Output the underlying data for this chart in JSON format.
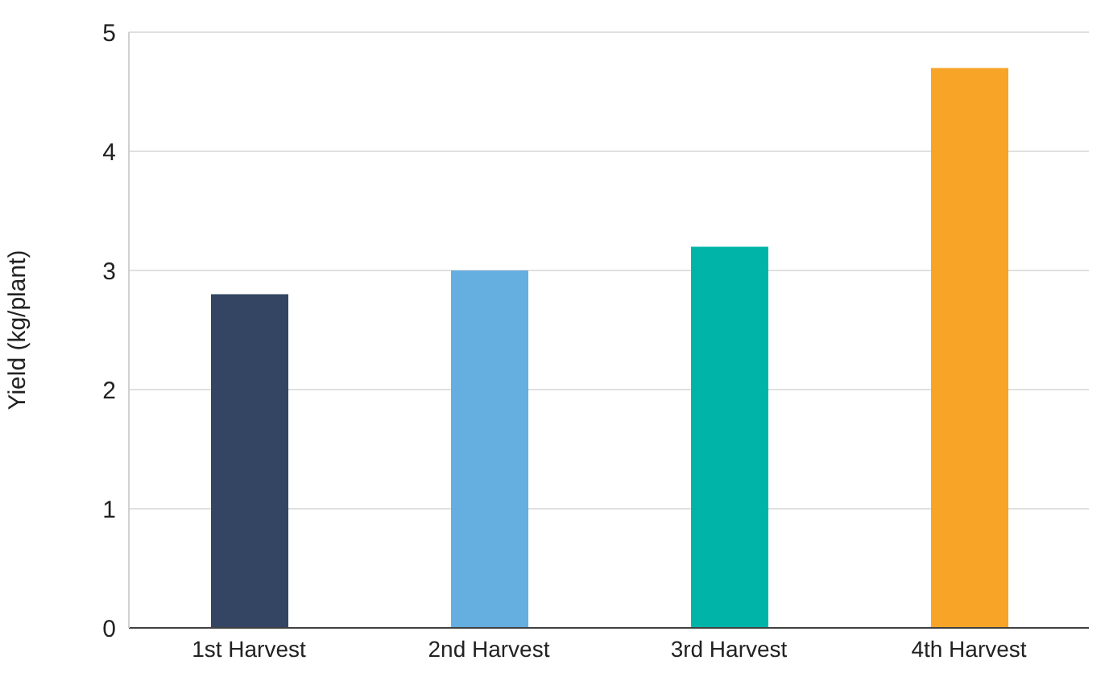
{
  "chart_data": {
    "type": "bar",
    "ylabel": "Yield (kg/plant)",
    "categories": [
      "1st Harvest",
      "2nd Harvest",
      "3rd Harvest",
      "4th Harvest"
    ],
    "values": [
      2.8,
      3.0,
      3.2,
      4.7
    ],
    "colors": [
      "#334563",
      "#65aee0",
      "#00b5a8",
      "#f7a427"
    ],
    "ylim": [
      0,
      5
    ],
    "yticks": [
      0,
      1,
      2,
      3,
      4,
      5
    ],
    "grid": "y"
  }
}
